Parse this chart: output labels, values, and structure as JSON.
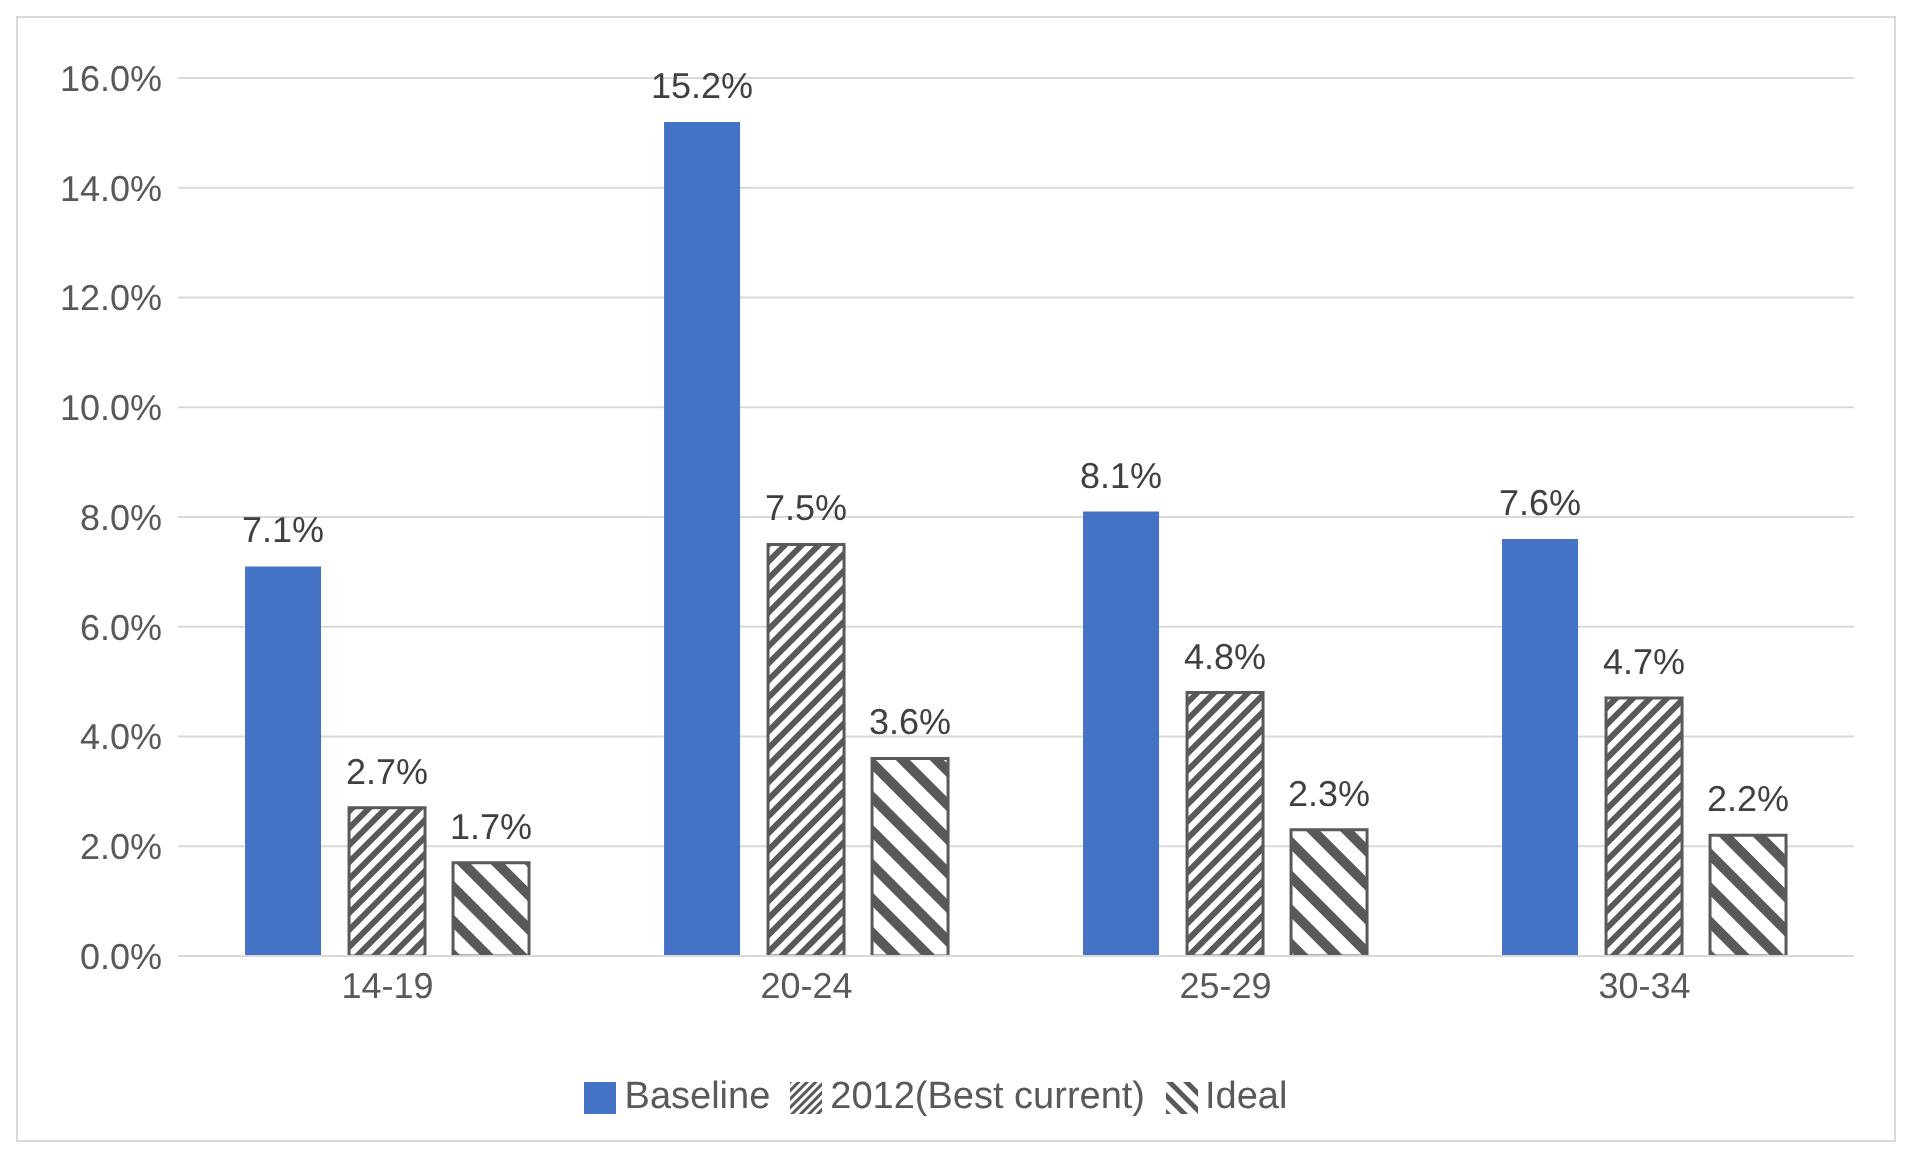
{
  "chart_data": {
    "type": "bar",
    "categories": [
      "14-19",
      "20-24",
      "25-29",
      "30-34"
    ],
    "series": [
      {
        "name": "Baseline",
        "color": "#4472c4",
        "values": [
          7.1,
          15.2,
          8.1,
          7.6
        ],
        "value_labels": [
          "7.1%",
          "15.2%",
          "8.1%",
          "7.6%"
        ]
      },
      {
        "name": "2012(Best current)",
        "color": "#595959",
        "values": [
          2.7,
          7.5,
          4.8,
          4.7
        ],
        "value_labels": [
          "2.7%",
          "7.5%",
          "4.8%",
          "4.7%"
        ]
      },
      {
        "name": "Ideal",
        "color": "#595959",
        "values": [
          1.7,
          3.6,
          2.3,
          2.2
        ],
        "value_labels": [
          "1.7%",
          "3.6%",
          "2.3%",
          "2.2%"
        ]
      }
    ],
    "ylim": [
      0,
      16
    ],
    "yticks": [
      {
        "value": 0,
        "label": "0.0%"
      },
      {
        "value": 2,
        "label": "2.0%"
      },
      {
        "value": 4,
        "label": "4.0%"
      },
      {
        "value": 6,
        "label": "6.0%"
      },
      {
        "value": 8,
        "label": "8.0%"
      },
      {
        "value": 10,
        "label": "10.0%"
      },
      {
        "value": 12,
        "label": "12.0%"
      },
      {
        "value": 14,
        "label": "14.0%"
      },
      {
        "value": 16,
        "label": "16.0%"
      }
    ],
    "grid": "y",
    "legend": "bottom"
  }
}
